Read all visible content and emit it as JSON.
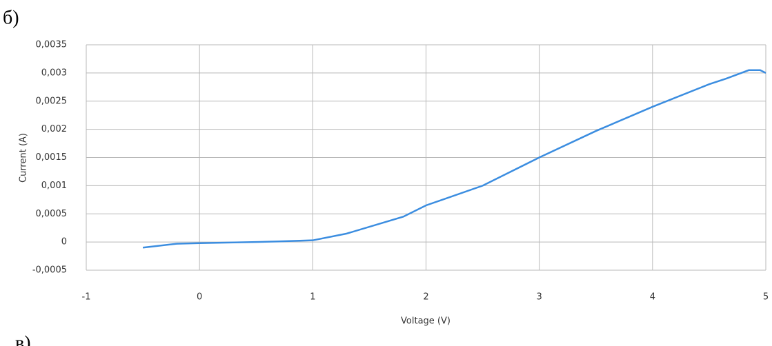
{
  "labels": {
    "top": "б)",
    "bottom": "в)"
  },
  "chart_data": {
    "type": "line",
    "xlabel": "Voltage (V)",
    "ylabel": "Current (A)",
    "xlim": [
      -1,
      5
    ],
    "xticks": [
      -1,
      0,
      1,
      2,
      3,
      4,
      5
    ],
    "ylim": [
      -0.0005,
      0.0035
    ],
    "yticks": [
      {
        "value": -0.0005,
        "label": "-0,0005"
      },
      0,
      {
        "value": 0.0005,
        "label": "0,0005"
      },
      {
        "value": 0.001,
        "label": "0,001"
      },
      {
        "value": 0.0015,
        "label": "0,0015"
      },
      {
        "value": 0.002,
        "label": "0,002"
      },
      {
        "value": 0.0025,
        "label": "0,0025"
      },
      {
        "value": 0.003,
        "label": "0,003"
      },
      {
        "value": 0.0035,
        "label": "0,0035"
      }
    ],
    "grid": true,
    "series": [
      {
        "color": "#3b8de0",
        "x": [
          -0.5,
          -0.2,
          0,
          0.5,
          0.7,
          1.0,
          1.3,
          1.8,
          2.0,
          2.5,
          3.0,
          3.5,
          4.0,
          4.5,
          4.65,
          4.85,
          4.95,
          5.0
        ],
        "values": [
          -0.0001,
          -3e-05,
          -2e-05,
          0,
          1e-05,
          3e-05,
          0.00015,
          0.00045,
          0.00065,
          0.001,
          0.0015,
          0.00197,
          0.0024,
          0.0028,
          0.0029,
          0.00305,
          0.00305,
          0.003
        ]
      }
    ]
  }
}
